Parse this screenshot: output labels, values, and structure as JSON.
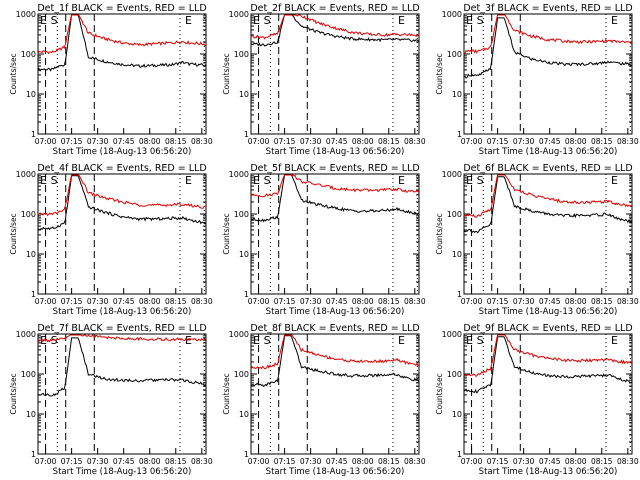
{
  "chart_data": [
    {
      "type": "line",
      "title": "Det_1f BLACK = Events, RED = LLD",
      "xlabel": "Start Time (18-Aug-13 06:56:20)",
      "ylabel": "Counts/sec",
      "ylog": true,
      "ylim": [
        1,
        1000
      ],
      "ytick_labels": [
        "1",
        "10",
        "100",
        "1000"
      ],
      "x_tick_labels": [
        "07:00",
        "07:15",
        "07:30",
        "07:45",
        "08:00",
        "08:15",
        "08:30"
      ],
      "markers": [
        "E",
        "S",
        "E"
      ],
      "series": [
        {
          "name": "Events",
          "color": "#000000",
          "x": [
            0,
            0.03,
            0.08,
            0.12,
            0.16,
            0.2,
            0.24,
            0.3,
            0.4,
            0.5,
            0.6,
            0.7,
            0.8,
            0.86,
            0.9,
            0.95,
            1
          ],
          "y": [
            40,
            42,
            40,
            48,
            55,
            950,
            950,
            85,
            65,
            55,
            50,
            52,
            54,
            62,
            56,
            54,
            52
          ]
        },
        {
          "name": "LLD",
          "color": "#e00000",
          "x": [
            0,
            0.03,
            0.08,
            0.12,
            0.16,
            0.2,
            0.24,
            0.3,
            0.4,
            0.5,
            0.6,
            0.7,
            0.8,
            0.86,
            0.9,
            0.95,
            1
          ],
          "y": [
            110,
            115,
            110,
            125,
            150,
            1000,
            1000,
            330,
            240,
            190,
            170,
            180,
            190,
            205,
            190,
            185,
            175
          ]
        }
      ]
    },
    {
      "type": "line",
      "title": "Det_2f BLACK = Events, RED = LLD",
      "xlabel": "Start Time (18-Aug-13 06:56:20)",
      "ylabel": "Counts/sec",
      "ylog": true,
      "ylim": [
        1,
        1000
      ],
      "ytick_labels": [
        "1",
        "10",
        "100",
        "1000"
      ],
      "x_tick_labels": [
        "07:00",
        "07:15",
        "07:30",
        "07:45",
        "08:00",
        "08:15",
        "08:30"
      ],
      "markers": [
        "E",
        "S",
        "E"
      ],
      "series": [
        {
          "name": "Events",
          "color": "#000000",
          "x": [
            0,
            0.03,
            0.08,
            0.12,
            0.16,
            0.2,
            0.24,
            0.3,
            0.4,
            0.5,
            0.6,
            0.7,
            0.8,
            0.86,
            0.9,
            0.95,
            1
          ],
          "y": [
            180,
            175,
            170,
            185,
            200,
            1000,
            1000,
            500,
            350,
            280,
            240,
            230,
            225,
            230,
            225,
            220,
            215
          ]
        },
        {
          "name": "LLD",
          "color": "#e00000",
          "x": [
            0,
            0.03,
            0.08,
            0.12,
            0.16,
            0.2,
            0.24,
            0.3,
            0.4,
            0.5,
            0.6,
            0.7,
            0.8,
            0.86,
            0.9,
            0.95,
            1
          ],
          "y": [
            280,
            270,
            260,
            290,
            320,
            1000,
            1000,
            900,
            600,
            450,
            350,
            310,
            300,
            310,
            305,
            300,
            290
          ]
        }
      ]
    },
    {
      "type": "line",
      "title": "Det_3f BLACK = Events, RED = LLD",
      "xlabel": "Start Time (18-Aug-13 06:56:20)",
      "ylabel": "Counts/sec",
      "ylog": true,
      "ylim": [
        1,
        1000
      ],
      "ytick_labels": [
        "1",
        "10",
        "100",
        "1000"
      ],
      "x_tick_labels": [
        "07:00",
        "07:15",
        "07:30",
        "07:45",
        "08:00",
        "08:15",
        "08:30"
      ],
      "markers": [
        "E",
        "S",
        "E"
      ],
      "series": [
        {
          "name": "Events",
          "color": "#000000",
          "x": [
            0,
            0.03,
            0.08,
            0.12,
            0.16,
            0.2,
            0.24,
            0.3,
            0.4,
            0.5,
            0.6,
            0.7,
            0.8,
            0.86,
            0.9,
            0.95,
            1
          ],
          "y": [
            25,
            30,
            28,
            35,
            45,
            800,
            800,
            110,
            75,
            62,
            55,
            56,
            58,
            65,
            60,
            57,
            55
          ]
        },
        {
          "name": "LLD",
          "color": "#e00000",
          "x": [
            0,
            0.03,
            0.08,
            0.12,
            0.16,
            0.2,
            0.24,
            0.3,
            0.4,
            0.5,
            0.6,
            0.7,
            0.8,
            0.86,
            0.9,
            0.95,
            1
          ],
          "y": [
            110,
            120,
            115,
            130,
            150,
            1000,
            1000,
            390,
            280,
            230,
            210,
            200,
            205,
            215,
            205,
            200,
            190
          ]
        }
      ]
    },
    {
      "type": "line",
      "title": "Det_4f BLACK = Events, RED = LLD",
      "xlabel": "Start Time (18-Aug-13 06:56:20)",
      "ylabel": "Counts/sec",
      "ylog": true,
      "ylim": [
        1,
        1000
      ],
      "ytick_labels": [
        "1",
        "10",
        "100",
        "1000"
      ],
      "x_tick_labels": [
        "07:00",
        "07:15",
        "07:30",
        "07:45",
        "08:00",
        "08:15",
        "08:30"
      ],
      "markers": [
        "E",
        "S",
        "E"
      ],
      "series": [
        {
          "name": "Events",
          "color": "#000000",
          "x": [
            0,
            0.03,
            0.08,
            0.12,
            0.16,
            0.2,
            0.24,
            0.3,
            0.4,
            0.5,
            0.6,
            0.7,
            0.8,
            0.86,
            0.9,
            0.95,
            1
          ],
          "y": [
            40,
            45,
            42,
            50,
            60,
            900,
            900,
            150,
            110,
            85,
            75,
            75,
            78,
            80,
            72,
            65,
            58
          ]
        },
        {
          "name": "LLD",
          "color": "#e00000",
          "x": [
            0,
            0.03,
            0.08,
            0.12,
            0.16,
            0.2,
            0.24,
            0.3,
            0.4,
            0.5,
            0.6,
            0.7,
            0.8,
            0.86,
            0.9,
            0.95,
            1
          ],
          "y": [
            95,
            100,
            98,
            110,
            130,
            1000,
            1000,
            340,
            250,
            200,
            170,
            165,
            170,
            175,
            165,
            155,
            145
          ]
        }
      ]
    },
    {
      "type": "line",
      "title": "Det_5f BLACK = Events, RED = LLD",
      "xlabel": "Start Time (18-Aug-13 06:56:20)",
      "ylabel": "Counts/sec",
      "ylog": true,
      "ylim": [
        1,
        1000
      ],
      "ytick_labels": [
        "1",
        "10",
        "100",
        "1000"
      ],
      "x_tick_labels": [
        "07:00",
        "07:15",
        "07:30",
        "07:45",
        "08:00",
        "08:15",
        "08:30"
      ],
      "markers": [
        "E",
        "S",
        "E"
      ],
      "series": [
        {
          "name": "Events",
          "color": "#000000",
          "x": [
            0,
            0.03,
            0.08,
            0.12,
            0.16,
            0.2,
            0.24,
            0.3,
            0.4,
            0.5,
            0.6,
            0.7,
            0.8,
            0.86,
            0.9,
            0.95,
            1
          ],
          "y": [
            75,
            72,
            70,
            78,
            85,
            1000,
            1000,
            220,
            170,
            140,
            120,
            118,
            122,
            135,
            120,
            110,
            100
          ]
        },
        {
          "name": "LLD",
          "color": "#e00000",
          "x": [
            0,
            0.03,
            0.08,
            0.12,
            0.16,
            0.2,
            0.24,
            0.3,
            0.4,
            0.5,
            0.6,
            0.7,
            0.8,
            0.86,
            0.9,
            0.95,
            1
          ],
          "y": [
            290,
            300,
            285,
            310,
            330,
            1000,
            1000,
            650,
            540,
            440,
            400,
            390,
            400,
            420,
            390,
            370,
            350
          ]
        }
      ]
    },
    {
      "type": "line",
      "title": "Det_6f BLACK = Events, RED = LLD",
      "xlabel": "Start Time (18-Aug-13 06:56:20)",
      "ylabel": "Counts/sec",
      "ylog": true,
      "ylim": [
        1,
        1000
      ],
      "ytick_labels": [
        "1",
        "10",
        "100",
        "1000"
      ],
      "x_tick_labels": [
        "07:00",
        "07:15",
        "07:30",
        "07:45",
        "08:00",
        "08:15",
        "08:30"
      ],
      "markers": [
        "E",
        "S",
        "E"
      ],
      "series": [
        {
          "name": "Events",
          "color": "#000000",
          "x": [
            0,
            0.03,
            0.08,
            0.12,
            0.16,
            0.2,
            0.24,
            0.3,
            0.4,
            0.5,
            0.6,
            0.7,
            0.8,
            0.86,
            0.9,
            0.95,
            1
          ],
          "y": [
            38,
            40,
            35,
            45,
            55,
            850,
            850,
            160,
            120,
            100,
            90,
            92,
            95,
            100,
            80,
            70,
            62
          ]
        },
        {
          "name": "LLD",
          "color": "#e00000",
          "x": [
            0,
            0.03,
            0.08,
            0.12,
            0.16,
            0.2,
            0.24,
            0.3,
            0.4,
            0.5,
            0.6,
            0.7,
            0.8,
            0.86,
            0.9,
            0.95,
            1
          ],
          "y": [
            90,
            95,
            85,
            110,
            130,
            1000,
            1000,
            420,
            300,
            240,
            200,
            195,
            200,
            210,
            185,
            170,
            160
          ]
        }
      ]
    },
    {
      "type": "line",
      "title": "Det_7f BLACK = Events, RED = LLD",
      "xlabel": "Start Time (18-Aug-13 06:56:20)",
      "ylabel": "Counts/sec",
      "ylog": true,
      "ylim": [
        1,
        1000
      ],
      "ytick_labels": [
        "1",
        "10",
        "100",
        "1000"
      ],
      "x_tick_labels": [
        "07:00",
        "07:15",
        "07:30",
        "07:45",
        "08:00",
        "08:15",
        "08:30"
      ],
      "markers": [
        "E",
        "S",
        "E"
      ],
      "series": [
        {
          "name": "Events",
          "color": "#000000",
          "x": [
            0,
            0.03,
            0.08,
            0.12,
            0.16,
            0.2,
            0.24,
            0.3,
            0.4,
            0.5,
            0.6,
            0.7,
            0.8,
            0.86,
            0.9,
            0.95,
            1
          ],
          "y": [
            30,
            32,
            28,
            35,
            45,
            800,
            800,
            100,
            75,
            70,
            68,
            70,
            72,
            70,
            65,
            60,
            55
          ]
        },
        {
          "name": "LLD",
          "color": "#e00000",
          "x": [
            0,
            0.03,
            0.08,
            0.12,
            0.16,
            0.2,
            0.24,
            0.3,
            0.4,
            0.5,
            0.6,
            0.7,
            0.8,
            0.86,
            0.9,
            0.95,
            1
          ],
          "y": [
            650,
            700,
            680,
            720,
            760,
            1000,
            1000,
            900,
            820,
            780,
            750,
            740,
            730,
            740,
            730,
            720,
            700
          ]
        }
      ]
    },
    {
      "type": "line",
      "title": "Det_8f BLACK = Events, RED = LLD",
      "xlabel": "Start Time (18-Aug-13 06:56:20)",
      "ylabel": "Counts/sec",
      "ylog": true,
      "ylim": [
        1,
        1000
      ],
      "ytick_labels": [
        "1",
        "10",
        "100",
        "1000"
      ],
      "x_tick_labels": [
        "07:00",
        "07:15",
        "07:30",
        "07:45",
        "08:00",
        "08:15",
        "08:30"
      ],
      "markers": [
        "E",
        "S",
        "E"
      ],
      "series": [
        {
          "name": "Events",
          "color": "#000000",
          "x": [
            0,
            0.03,
            0.08,
            0.12,
            0.16,
            0.2,
            0.24,
            0.3,
            0.4,
            0.5,
            0.6,
            0.7,
            0.8,
            0.86,
            0.9,
            0.95,
            1
          ],
          "y": [
            50,
            55,
            52,
            60,
            70,
            900,
            900,
            150,
            120,
            100,
            90,
            92,
            95,
            100,
            85,
            75,
            68
          ]
        },
        {
          "name": "LLD",
          "color": "#e00000",
          "x": [
            0,
            0.03,
            0.08,
            0.12,
            0.16,
            0.2,
            0.24,
            0.3,
            0.4,
            0.5,
            0.6,
            0.7,
            0.8,
            0.86,
            0.9,
            0.95,
            1
          ],
          "y": [
            140,
            150,
            145,
            160,
            180,
            1000,
            1000,
            400,
            300,
            240,
            210,
            205,
            210,
            230,
            200,
            185,
            170
          ]
        }
      ]
    },
    {
      "type": "line",
      "title": "Det_9f BLACK = Events, RED = LLD",
      "xlabel": "Start Time (18-Aug-13 06:56:20)",
      "ylabel": "Counts/sec",
      "ylog": true,
      "ylim": [
        1,
        1000
      ],
      "ytick_labels": [
        "1",
        "10",
        "100",
        "1000"
      ],
      "x_tick_labels": [
        "07:00",
        "07:15",
        "07:30",
        "07:45",
        "08:00",
        "08:15",
        "08:30"
      ],
      "markers": [
        "E",
        "S",
        "E"
      ],
      "series": [
        {
          "name": "Events",
          "color": "#000000",
          "x": [
            0,
            0.03,
            0.08,
            0.12,
            0.16,
            0.2,
            0.24,
            0.3,
            0.4,
            0.5,
            0.6,
            0.7,
            0.8,
            0.86,
            0.9,
            0.95,
            1
          ],
          "y": [
            38,
            40,
            36,
            45,
            55,
            850,
            850,
            150,
            110,
            90,
            85,
            88,
            90,
            95,
            80,
            70,
            62
          ]
        },
        {
          "name": "LLD",
          "color": "#e00000",
          "x": [
            0,
            0.03,
            0.08,
            0.12,
            0.16,
            0.2,
            0.24,
            0.3,
            0.4,
            0.5,
            0.6,
            0.7,
            0.8,
            0.86,
            0.9,
            0.95,
            1
          ],
          "y": [
            95,
            100,
            92,
            115,
            135,
            1000,
            1000,
            400,
            300,
            250,
            220,
            215,
            220,
            230,
            210,
            200,
            190
          ]
        }
      ]
    }
  ]
}
